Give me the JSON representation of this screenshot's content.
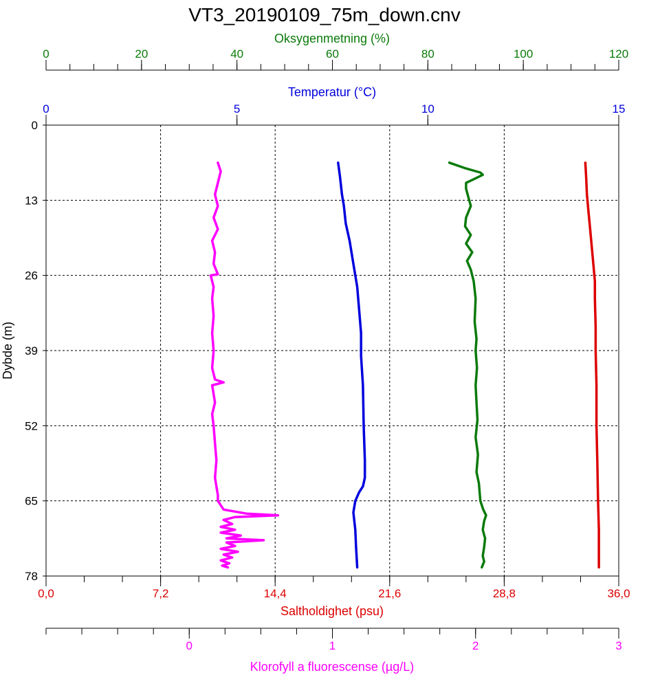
{
  "chart_data": {
    "type": "line",
    "title": "VT3_20190109_75m_down.cnv",
    "y_axis": {
      "label": "Dybde (m)",
      "range": [
        0,
        78
      ],
      "ticks": [
        "0",
        "13",
        "26",
        "39",
        "52",
        "65",
        "78"
      ],
      "inverted": true,
      "grid": true
    },
    "x_axes": [
      {
        "id": "oxygen",
        "label": "Oksygenmetning (%)",
        "range": [
          0,
          120
        ],
        "ticks": [
          "0",
          "20",
          "40",
          "60",
          "80",
          "100",
          "120"
        ],
        "position": "top",
        "color": "#0a7a0a"
      },
      {
        "id": "temperature",
        "label": "Temperatur (°C)",
        "range": [
          0,
          15
        ],
        "ticks": [
          "0",
          "5",
          "10",
          "15"
        ],
        "position": "top",
        "color": "#0000dd"
      },
      {
        "id": "salinity",
        "label": "Saltholdighet (psu)",
        "range": [
          0,
          36
        ],
        "ticks": [
          "0,0",
          "7,2",
          "14,4",
          "21,6",
          "28,8",
          "36,0"
        ],
        "position": "bottom",
        "color": "#dd0000"
      },
      {
        "id": "chlorophyll",
        "label": "Klorofyll a fluorescense (µg/L)",
        "range": [
          -1,
          3
        ],
        "ticks": [
          "0",
          "1",
          "2",
          "3"
        ],
        "position": "bottom",
        "color": "#ff00ff"
      }
    ],
    "series": [
      {
        "axis": "salinity",
        "color": "#dd0000",
        "points": [
          [
            33.9,
            6.5
          ],
          [
            33.95,
            9
          ],
          [
            34.0,
            12
          ],
          [
            34.1,
            15
          ],
          [
            34.2,
            18
          ],
          [
            34.3,
            21
          ],
          [
            34.4,
            24
          ],
          [
            34.5,
            27
          ],
          [
            34.5,
            30
          ],
          [
            34.55,
            35
          ],
          [
            34.55,
            39
          ],
          [
            34.6,
            45
          ],
          [
            34.6,
            52
          ],
          [
            34.65,
            58
          ],
          [
            34.7,
            65
          ],
          [
            34.75,
            70
          ],
          [
            34.75,
            75
          ],
          [
            34.75,
            76.5
          ]
        ]
      },
      {
        "axis": "temperature",
        "color": "#0000dd",
        "points": [
          [
            7.65,
            6.5
          ],
          [
            7.7,
            9
          ],
          [
            7.75,
            12
          ],
          [
            7.8,
            14
          ],
          [
            7.85,
            17
          ],
          [
            7.95,
            20
          ],
          [
            8.05,
            24
          ],
          [
            8.15,
            28
          ],
          [
            8.2,
            32
          ],
          [
            8.25,
            36
          ],
          [
            8.25,
            40
          ],
          [
            8.3,
            45
          ],
          [
            8.32,
            52
          ],
          [
            8.35,
            58
          ],
          [
            8.35,
            61
          ],
          [
            8.3,
            62.5
          ],
          [
            8.2,
            63.5
          ],
          [
            8.1,
            65
          ],
          [
            8.05,
            67
          ],
          [
            8.1,
            70
          ],
          [
            8.12,
            73
          ],
          [
            8.15,
            76.5
          ]
        ]
      },
      {
        "axis": "oxygen",
        "color": "#0a7a0a",
        "points": [
          [
            84.5,
            6.5
          ],
          [
            88,
            7.5
          ],
          [
            91,
            8.2
          ],
          [
            91.5,
            8.6
          ],
          [
            90,
            9.2
          ],
          [
            88,
            10
          ],
          [
            88,
            11
          ],
          [
            88.5,
            12.5
          ],
          [
            89,
            14
          ],
          [
            88,
            16
          ],
          [
            87.8,
            17.5
          ],
          [
            89,
            19
          ],
          [
            88,
            20.5
          ],
          [
            89.3,
            22
          ],
          [
            88.2,
            23.5
          ],
          [
            89,
            25
          ],
          [
            89.6,
            27
          ],
          [
            90,
            30
          ],
          [
            89.8,
            34
          ],
          [
            90.2,
            37
          ],
          [
            90,
            39
          ],
          [
            90.3,
            42
          ],
          [
            90,
            45
          ],
          [
            90.2,
            48
          ],
          [
            90.4,
            51
          ],
          [
            90,
            54
          ],
          [
            90.5,
            57
          ],
          [
            90.2,
            60
          ],
          [
            90.7,
            62
          ],
          [
            90.9,
            64
          ],
          [
            91,
            65
          ],
          [
            91.6,
            66.5
          ],
          [
            92.2,
            67.5
          ],
          [
            91.8,
            68.5
          ],
          [
            91.5,
            70
          ],
          [
            92,
            71.5
          ],
          [
            91.8,
            73
          ],
          [
            91.5,
            74.5
          ],
          [
            91.8,
            75.5
          ],
          [
            91.3,
            76.5
          ]
        ]
      },
      {
        "axis": "chlorophyll",
        "color": "#ff00ff",
        "points": [
          [
            0.2,
            6.5
          ],
          [
            0.22,
            8
          ],
          [
            0.2,
            10
          ],
          [
            0.18,
            12
          ],
          [
            0.2,
            14
          ],
          [
            0.17,
            16
          ],
          [
            0.2,
            18
          ],
          [
            0.16,
            20
          ],
          [
            0.18,
            22
          ],
          [
            0.17,
            24
          ],
          [
            0.2,
            25.8
          ],
          [
            0.15,
            26
          ],
          [
            0.17,
            28
          ],
          [
            0.16,
            30
          ],
          [
            0.17,
            33
          ],
          [
            0.16,
            36
          ],
          [
            0.17,
            39
          ],
          [
            0.16,
            42
          ],
          [
            0.18,
            44
          ],
          [
            0.24,
            44.5
          ],
          [
            0.16,
            45
          ],
          [
            0.18,
            48
          ],
          [
            0.16,
            50
          ],
          [
            0.17,
            52
          ],
          [
            0.18,
            55
          ],
          [
            0.19,
            58
          ],
          [
            0.18,
            61
          ],
          [
            0.2,
            64
          ],
          [
            0.2,
            65
          ],
          [
            0.24,
            66.5
          ],
          [
            0.4,
            67.2
          ],
          [
            0.62,
            67.5
          ],
          [
            0.32,
            67.8
          ],
          [
            0.24,
            68.3
          ],
          [
            0.3,
            69
          ],
          [
            0.22,
            69.5
          ],
          [
            0.32,
            70
          ],
          [
            0.22,
            70.5
          ],
          [
            0.36,
            71
          ],
          [
            0.26,
            71.5
          ],
          [
            0.52,
            71.8
          ],
          [
            0.26,
            72.2
          ],
          [
            0.32,
            72.8
          ],
          [
            0.22,
            73.3
          ],
          [
            0.34,
            73.8
          ],
          [
            0.24,
            74.3
          ],
          [
            0.3,
            74.8
          ],
          [
            0.22,
            75.3
          ],
          [
            0.28,
            75.8
          ],
          [
            0.23,
            76.2
          ],
          [
            0.27,
            76.5
          ]
        ]
      }
    ]
  }
}
